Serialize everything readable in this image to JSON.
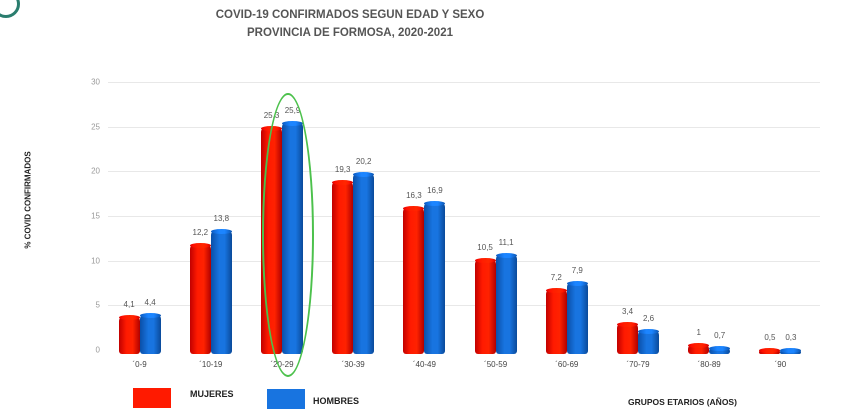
{
  "chart_data": {
    "type": "bar",
    "title": "COVID-19 CONFIRMADOS SEGUN EDAD Y SEXO",
    "subtitle": "PROVINCIA DE FORMOSA, 2020-2021",
    "xlabel": "GRUPOS ETARIOS (AÑOS)",
    "ylabel": "% COVID CONFIRMADOS",
    "ylim": [
      0,
      30
    ],
    "yticks": [
      0,
      5,
      10,
      15,
      20,
      25,
      30
    ],
    "grid": true,
    "legend_position": "bottom-left",
    "categories": [
      "0-9",
      "10-19",
      "20-29",
      "30-39",
      "40-49",
      "50-59",
      "60-69",
      "70-79",
      "80-89",
      "90"
    ],
    "series": [
      {
        "name": "MUJERES",
        "color": "#ff1a00",
        "values": [
          4.1,
          12.2,
          25.3,
          19.3,
          16.3,
          10.5,
          7.2,
          3.4,
          1,
          0.5
        ],
        "labels": [
          "4,1",
          "12,2",
          "25,3",
          "19,3",
          "16,3",
          "10,5",
          "7,2",
          "3,4",
          "1",
          "0,5"
        ]
      },
      {
        "name": "HOMBRES",
        "color": "#1874e0",
        "values": [
          4.4,
          13.8,
          25.9,
          20.2,
          16.9,
          11.1,
          7.9,
          2.6,
          0.7,
          0.3
        ],
        "labels": [
          "4,4",
          "13,8",
          "25,9",
          "20,2",
          "16,9",
          "11,1",
          "7,9",
          "2,6",
          "0,7",
          "0,3"
        ]
      }
    ],
    "annotations": [
      {
        "type": "ellipse",
        "target_category": "20-29",
        "color": "#4cc14c"
      }
    ]
  },
  "xtick_labels": [
    "´0-9",
    "´10-19",
    "´20-29",
    "´30-39",
    "´40-49",
    "´50-59",
    "´60-69",
    "´70-79",
    "´80-89",
    "´90"
  ],
  "legend": {
    "mujeres": "MUJERES",
    "hombres": "HOMBRES"
  }
}
